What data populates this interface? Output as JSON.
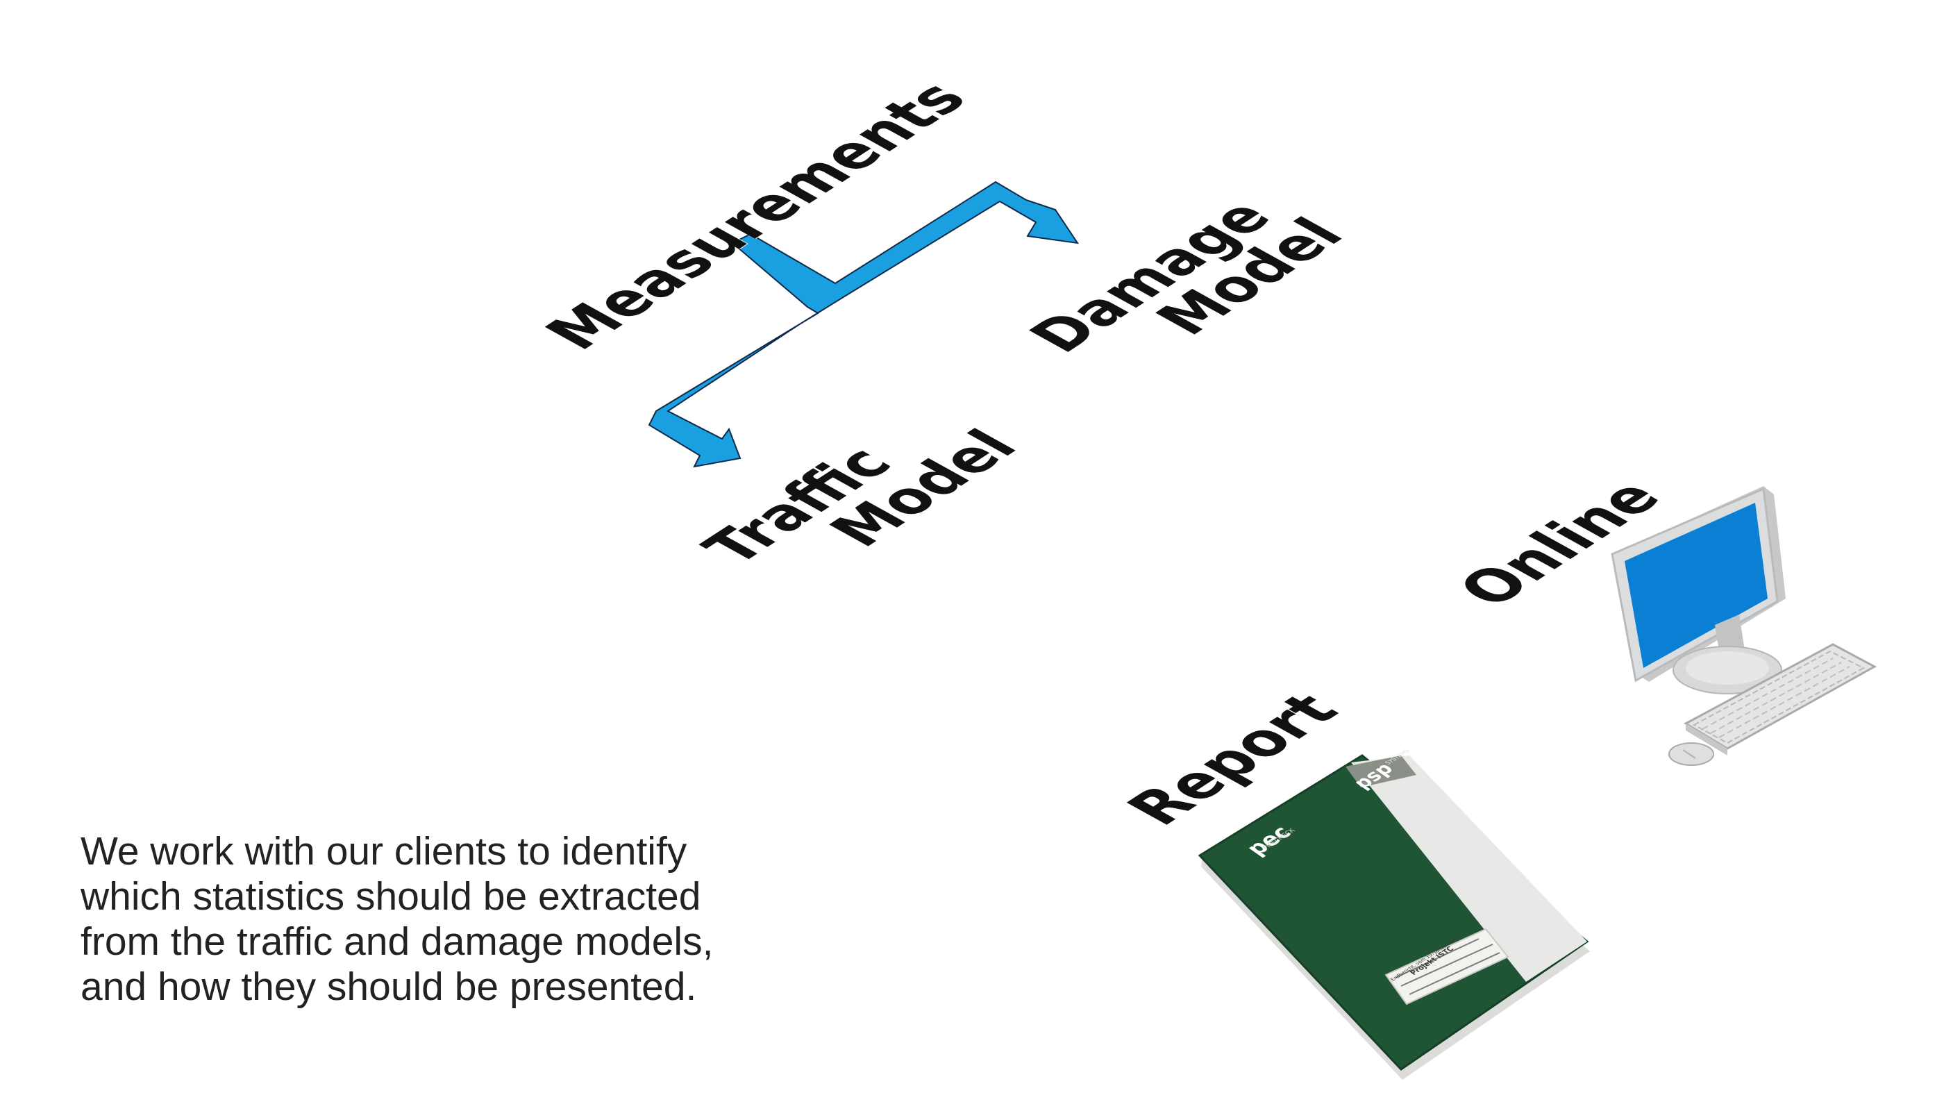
{
  "labels": {
    "measurements": "Measurements",
    "damage_line1": "Damage",
    "damage_line2": "Model",
    "traffic_line1": "Traffic",
    "traffic_line2": "Model",
    "online": "Online",
    "report": "Report"
  },
  "caption": "We work with our clients to identify which statistics should be extracted from the traffic and damage models, and how they should be presented.",
  "report_cover": {
    "brand_left": "pec",
    "brand_left_sub": "PIPECHECK",
    "brand_right": "psp",
    "brand_right_sub": "SYSTEMS",
    "label_line1": "Endbericht, vom 15. Januar 2021",
    "label_line2": "Projekt ISTC"
  },
  "colors": {
    "arrow_fill": "#1a9fe0",
    "arrow_stroke": "#0d2a4a",
    "report_green": "#1f5535",
    "report_spine": "#e8e8e6",
    "monitor_screen": "#0a7fd4",
    "monitor_body": "#d9dadb"
  },
  "icons": {
    "flow_arrow": "branch-arrow-icon",
    "computer": "desktop-computer-icon",
    "report": "report-binder-icon"
  }
}
